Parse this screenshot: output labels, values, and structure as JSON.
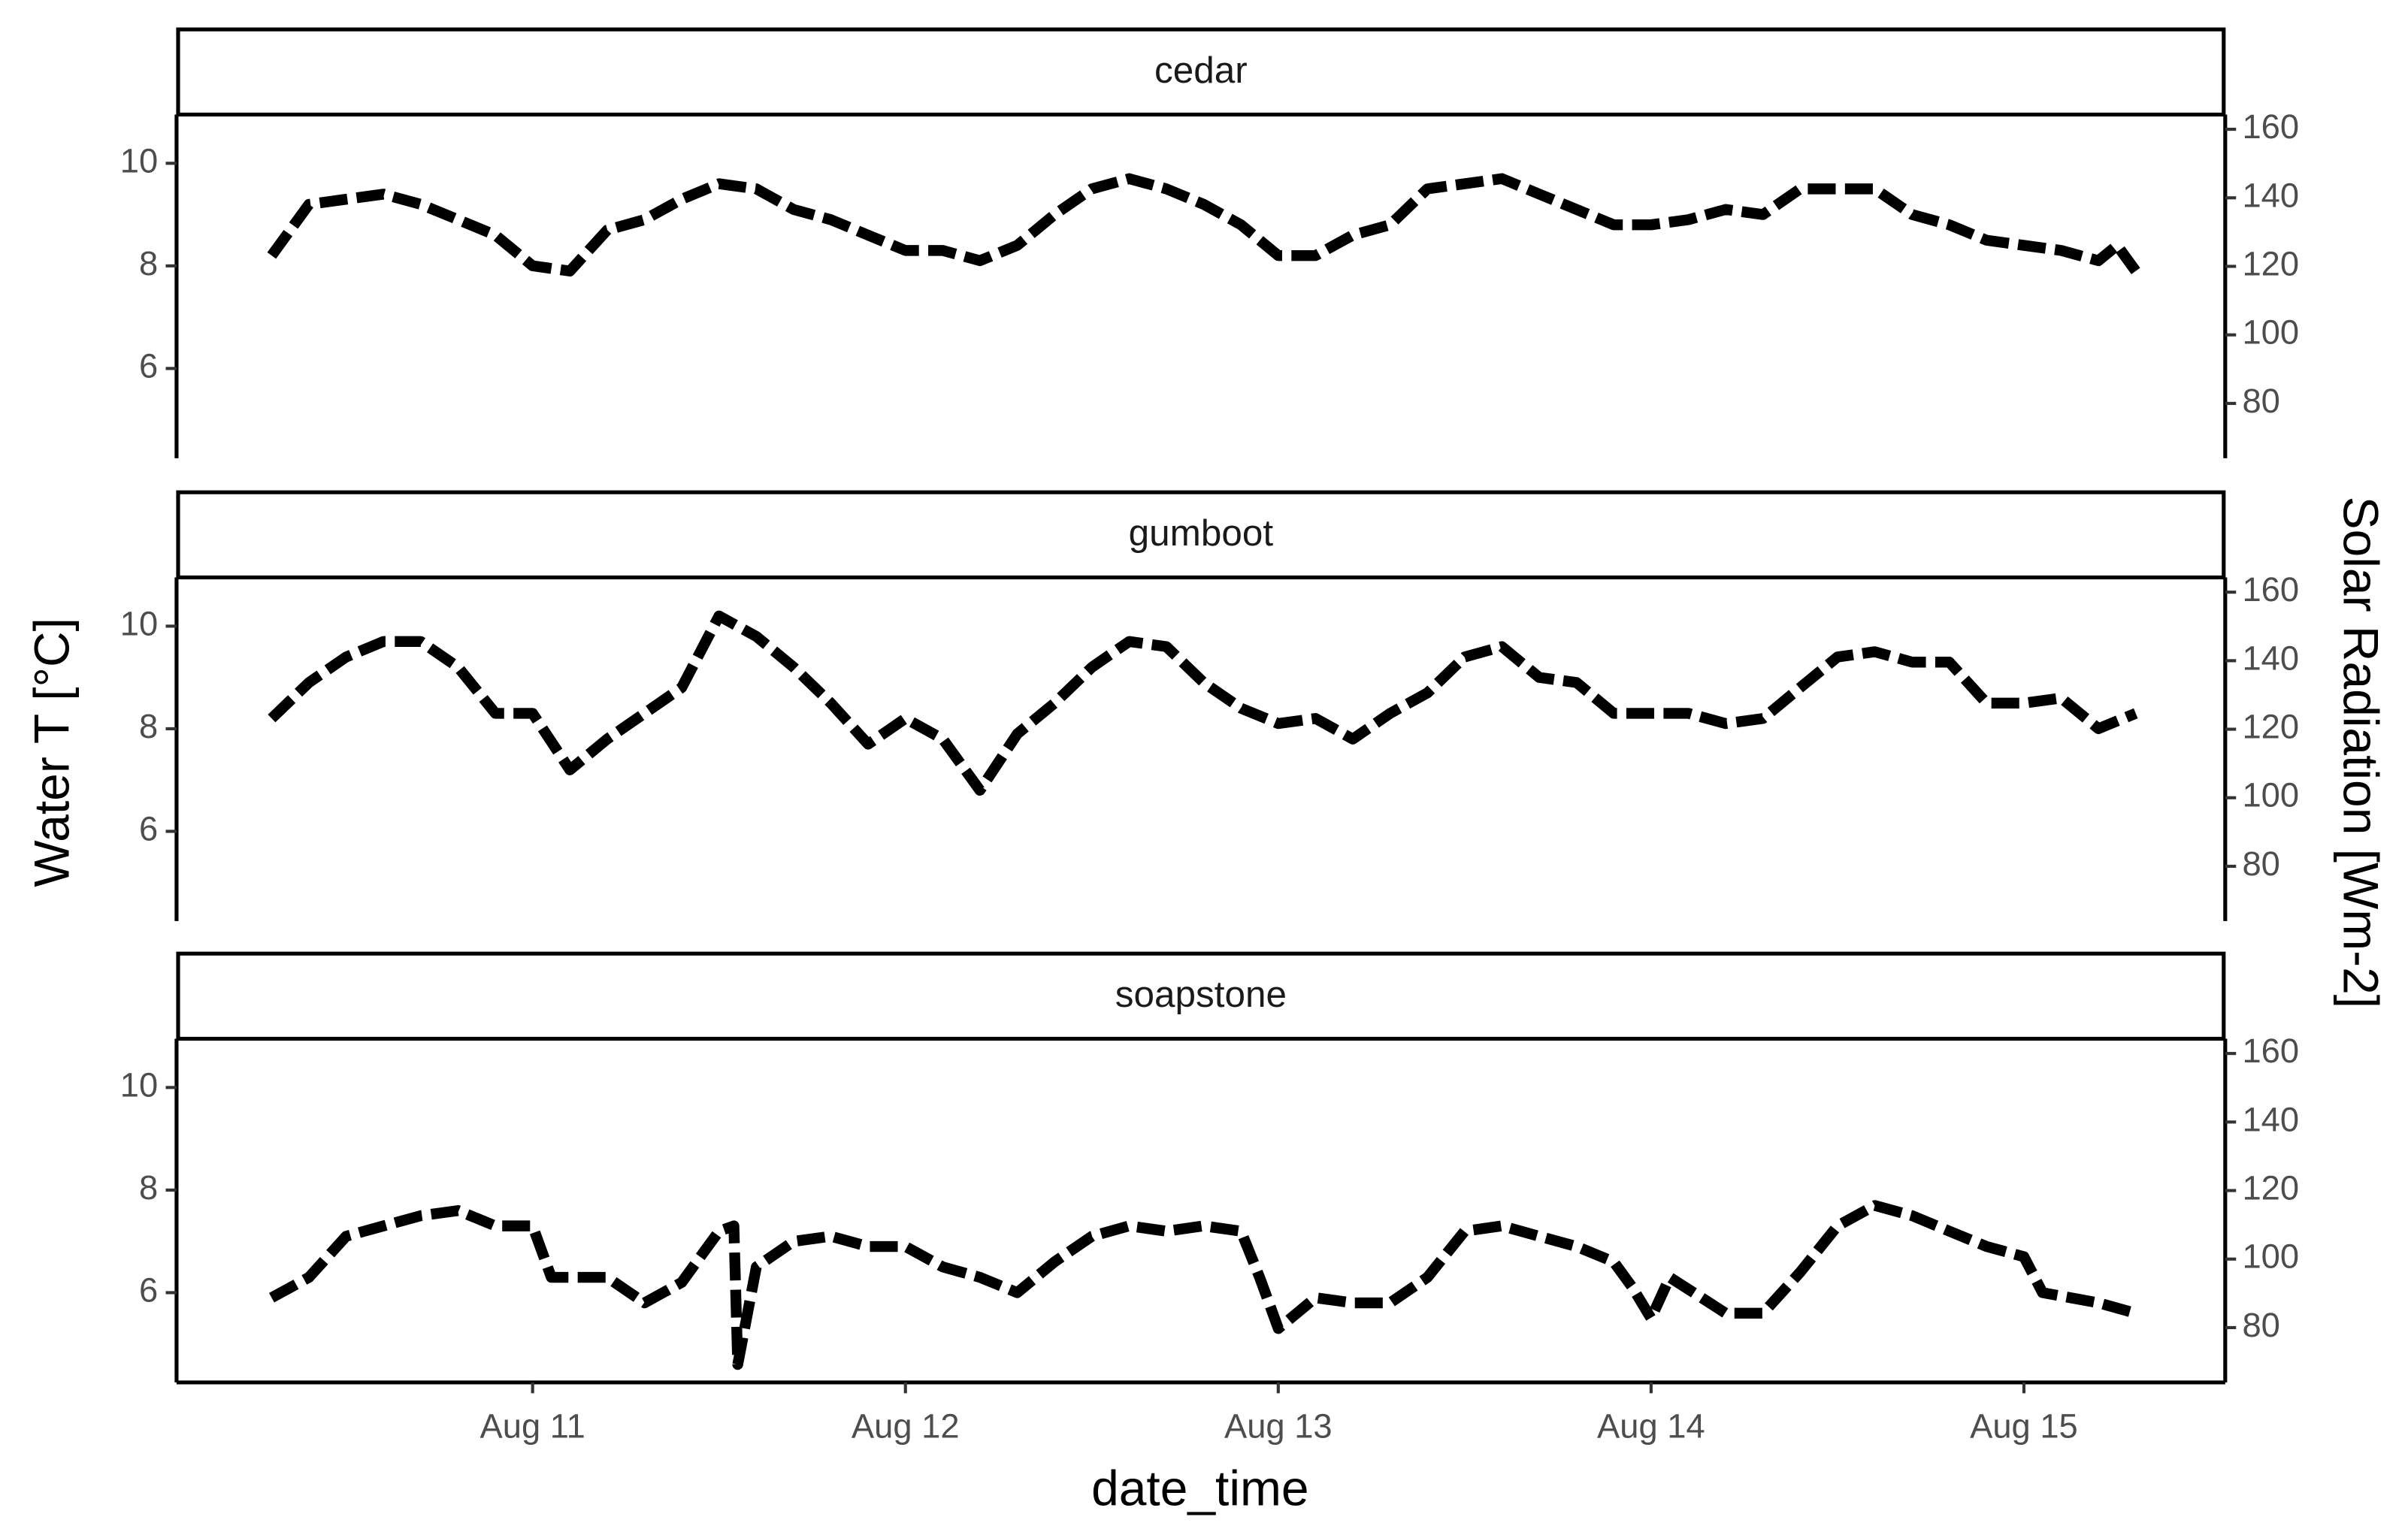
{
  "chart_data": {
    "type": "line",
    "x_label": "date_time",
    "y_label": "Water T [°C]",
    "y2_label": "Solar Radiation [Wm-2]",
    "color": "#000000",
    "xlim": [
      10.045,
      15.54
    ],
    "xticks": [
      {
        "value": 11,
        "label": "Aug 11"
      },
      {
        "value": 12,
        "label": "Aug 12"
      },
      {
        "value": 13,
        "label": "Aug 13"
      },
      {
        "value": 14,
        "label": "Aug 14"
      },
      {
        "value": 15,
        "label": "Aug 15"
      }
    ],
    "ylim": [
      4.25,
      10.95
    ],
    "yticks": [
      6,
      8,
      10
    ],
    "y2lim": [
      64,
      164.3
    ],
    "y2ticks": [
      80,
      100,
      120,
      140,
      160
    ],
    "facets": [
      {
        "title": "cedar",
        "x": [
          10.3,
          10.4,
          10.5,
          10.6,
          10.7,
          10.8,
          10.9,
          11.0,
          11.1,
          11.2,
          11.3,
          11.4,
          11.5,
          11.6,
          11.7,
          11.8,
          11.9,
          12.0,
          12.1,
          12.2,
          12.3,
          12.4,
          12.5,
          12.6,
          12.7,
          12.8,
          12.9,
          13.0,
          13.1,
          13.2,
          13.3,
          13.4,
          13.5,
          13.6,
          13.7,
          13.8,
          13.9,
          14.0,
          14.1,
          14.2,
          14.3,
          14.4,
          14.5,
          14.6,
          14.7,
          14.8,
          14.9,
          15.0,
          15.1,
          15.2,
          15.25,
          15.3
        ],
        "values": [
          8.2,
          9.2,
          9.3,
          9.4,
          9.2,
          8.9,
          8.6,
          8.0,
          7.9,
          8.7,
          8.9,
          9.3,
          9.6,
          9.5,
          9.1,
          8.9,
          8.6,
          8.3,
          8.3,
          8.1,
          8.4,
          9.0,
          9.5,
          9.7,
          9.5,
          9.2,
          8.8,
          8.2,
          8.2,
          8.6,
          8.8,
          9.5,
          9.6,
          9.7,
          9.4,
          9.1,
          8.8,
          8.8,
          8.9,
          9.1,
          9.0,
          9.5,
          9.5,
          9.5,
          9.0,
          8.8,
          8.5,
          8.4,
          8.3,
          8.1,
          8.4,
          7.9
        ]
      },
      {
        "title": "gumboot",
        "x": [
          10.3,
          10.4,
          10.5,
          10.6,
          10.7,
          10.8,
          10.9,
          11.0,
          11.1,
          11.2,
          11.3,
          11.4,
          11.5,
          11.6,
          11.7,
          11.8,
          11.9,
          12.0,
          12.1,
          12.2,
          12.3,
          12.4,
          12.5,
          12.6,
          12.7,
          12.8,
          12.9,
          13.0,
          13.1,
          13.2,
          13.3,
          13.4,
          13.5,
          13.6,
          13.7,
          13.8,
          13.9,
          14.0,
          14.1,
          14.2,
          14.3,
          14.4,
          14.5,
          14.6,
          14.7,
          14.8,
          14.9,
          15.0,
          15.1,
          15.2,
          15.3
        ],
        "values": [
          8.2,
          8.9,
          9.4,
          9.7,
          9.7,
          9.2,
          8.3,
          8.3,
          7.2,
          7.8,
          8.3,
          8.8,
          10.2,
          9.8,
          9.2,
          8.5,
          7.7,
          8.2,
          7.8,
          6.8,
          7.9,
          8.5,
          9.2,
          9.7,
          9.6,
          8.9,
          8.4,
          8.1,
          8.2,
          7.8,
          8.3,
          8.7,
          9.4,
          9.6,
          9.0,
          8.9,
          8.3,
          8.3,
          8.3,
          8.1,
          8.2,
          8.8,
          9.4,
          9.5,
          9.3,
          9.3,
          8.5,
          8.5,
          8.6,
          8.0,
          8.3
        ]
      },
      {
        "title": "soapstone",
        "x": [
          10.3,
          10.4,
          10.5,
          10.6,
          10.7,
          10.8,
          10.9,
          11.0,
          11.05,
          11.2,
          11.3,
          11.4,
          11.5,
          11.54,
          11.55,
          11.6,
          11.7,
          11.8,
          11.9,
          12.0,
          12.1,
          12.2,
          12.3,
          12.4,
          12.5,
          12.6,
          12.7,
          12.8,
          12.9,
          12.95,
          13.0,
          13.1,
          13.2,
          13.3,
          13.4,
          13.5,
          13.6,
          13.7,
          13.8,
          13.9,
          13.95,
          14.0,
          14.05,
          14.2,
          14.3,
          14.4,
          14.5,
          14.6,
          14.7,
          14.8,
          14.9,
          15.0,
          15.05,
          15.2,
          15.3
        ],
        "values": [
          5.9,
          6.3,
          7.1,
          7.3,
          7.5,
          7.6,
          7.3,
          7.3,
          6.3,
          6.3,
          5.8,
          6.2,
          7.2,
          7.3,
          4.6,
          6.5,
          7.0,
          7.1,
          6.9,
          6.9,
          6.5,
          6.3,
          6.0,
          6.6,
          7.1,
          7.3,
          7.2,
          7.3,
          7.2,
          6.3,
          5.3,
          5.9,
          5.8,
          5.8,
          6.3,
          7.2,
          7.3,
          7.1,
          6.9,
          6.6,
          6.1,
          5.5,
          6.3,
          5.6,
          5.6,
          6.4,
          7.3,
          7.7,
          7.5,
          7.2,
          6.9,
          6.7,
          6.0,
          5.8,
          5.6
        ]
      }
    ]
  }
}
